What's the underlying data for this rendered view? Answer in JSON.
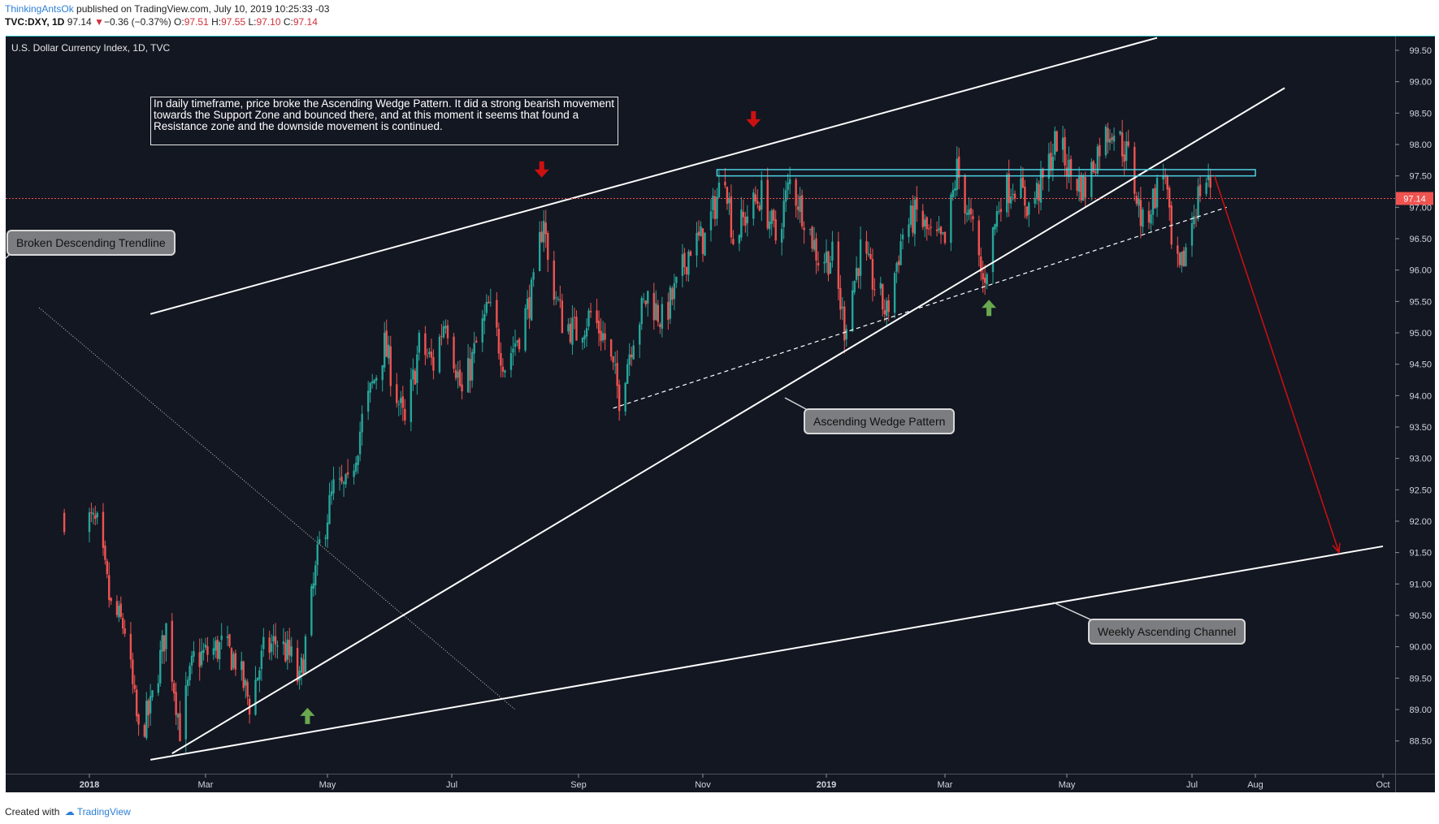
{
  "header": {
    "author": "ThinkingAntsOk",
    "published": "published on TradingView.com, July 10, 2019 10:25:33 -03",
    "symbol": "TVC:DXY, 1D",
    "last": "97.14",
    "change_arrow": "▼",
    "change": "−0.36 (−0.37%)",
    "o_label": "O:",
    "o": "97.51",
    "h_label": "H:",
    "h": "97.55",
    "l_label": "L:",
    "l": "97.10",
    "c_label": "C:",
    "c": "97.14"
  },
  "chart_title": "U.S. Dollar Currency Index, 1D, TVC",
  "note_text": "In daily timeframe, price broke the Ascending Wedge Pattern. It did a strong bearish movement towards the Support Zone and bounced there, and at this moment it seems that found a Resistance zone and the downside movement is continued.",
  "annotations": {
    "trendline": "Broken Descending Trendline",
    "wedge": "Ascending Wedge Pattern",
    "channel": "Weekly Ascending Channel"
  },
  "footer": {
    "created_with": "Created with",
    "brand": "TradingView"
  },
  "colors": {
    "background": "#131722",
    "up_candle": "#26a69a",
    "down_candle": "#ef5350",
    "price_line": "#ef5350",
    "resistance_zone": "#4dd0e1",
    "sell_arrow": "#cc1111",
    "buy_arrow": "#6aa84f",
    "projection": "#d01010"
  },
  "chart_data": {
    "type": "candlestick",
    "title": "U.S. Dollar Currency Index, 1D, TVC",
    "ylim": [
      88.2,
      99.75
    ],
    "y_ticks": [
      "99.50",
      "99.00",
      "98.50",
      "98.00",
      "97.50",
      "97.00",
      "96.50",
      "96.00",
      "95.50",
      "95.00",
      "94.50",
      "94.00",
      "93.50",
      "93.00",
      "92.50",
      "92.00",
      "91.50",
      "91.00",
      "90.50",
      "90.00",
      "89.50",
      "89.00",
      "88.50"
    ],
    "x_ticks": [
      "2018",
      "Mar",
      "May",
      "Jul",
      "Sep",
      "Nov",
      "2019",
      "Mar",
      "May",
      "Jul",
      "Aug",
      "Oct"
    ],
    "last_price": 97.14,
    "last_price_label": "97.14",
    "price_path": [
      {
        "date": "2017-12-29",
        "price": 92.1
      },
      {
        "date": "2018-01-05",
        "price": 91.9
      },
      {
        "date": "2018-01-12",
        "price": 90.6
      },
      {
        "date": "2018-01-19",
        "price": 90.3
      },
      {
        "date": "2018-01-26",
        "price": 88.6
      },
      {
        "date": "2018-02-01",
        "price": 89.0
      },
      {
        "date": "2018-02-09",
        "price": 90.3
      },
      {
        "date": "2018-02-16",
        "price": 88.7
      },
      {
        "date": "2018-02-23",
        "price": 89.8
      },
      {
        "date": "2018-03-02",
        "price": 89.9
      },
      {
        "date": "2018-03-09",
        "price": 90.0
      },
      {
        "date": "2018-03-16",
        "price": 89.8
      },
      {
        "date": "2018-03-23",
        "price": 89.1
      },
      {
        "date": "2018-03-30",
        "price": 89.9
      },
      {
        "date": "2018-04-06",
        "price": 90.1
      },
      {
        "date": "2018-04-13",
        "price": 89.8
      },
      {
        "date": "2018-04-17",
        "price": 89.4
      },
      {
        "date": "2018-04-27",
        "price": 91.6
      },
      {
        "date": "2018-05-04",
        "price": 92.5
      },
      {
        "date": "2018-05-11",
        "price": 92.5
      },
      {
        "date": "2018-05-18",
        "price": 93.6
      },
      {
        "date": "2018-05-29",
        "price": 94.8
      },
      {
        "date": "2018-06-08",
        "price": 93.5
      },
      {
        "date": "2018-06-15",
        "price": 94.8
      },
      {
        "date": "2018-06-22",
        "price": 94.5
      },
      {
        "date": "2018-06-28",
        "price": 95.3
      },
      {
        "date": "2018-07-06",
        "price": 94.0
      },
      {
        "date": "2018-07-13",
        "price": 94.8
      },
      {
        "date": "2018-07-19",
        "price": 95.4
      },
      {
        "date": "2018-07-27",
        "price": 94.5
      },
      {
        "date": "2018-08-03",
        "price": 95.0
      },
      {
        "date": "2018-08-10",
        "price": 95.7
      },
      {
        "date": "2018-08-15",
        "price": 96.9
      },
      {
        "date": "2018-08-17",
        "price": 96.1
      },
      {
        "date": "2018-08-24",
        "price": 95.2
      },
      {
        "date": "2018-08-31",
        "price": 95.0
      },
      {
        "date": "2018-09-07",
        "price": 95.3
      },
      {
        "date": "2018-09-14",
        "price": 94.9
      },
      {
        "date": "2018-09-21",
        "price": 94.0
      },
      {
        "date": "2018-09-28",
        "price": 95.0
      },
      {
        "date": "2018-10-05",
        "price": 95.6
      },
      {
        "date": "2018-10-12",
        "price": 95.2
      },
      {
        "date": "2018-10-19",
        "price": 95.7
      },
      {
        "date": "2018-10-26",
        "price": 96.4
      },
      {
        "date": "2018-11-02",
        "price": 96.5
      },
      {
        "date": "2018-11-12",
        "price": 97.6
      },
      {
        "date": "2018-11-16",
        "price": 96.5
      },
      {
        "date": "2018-11-23",
        "price": 96.9
      },
      {
        "date": "2018-11-30",
        "price": 97.2
      },
      {
        "date": "2018-12-07",
        "price": 96.5
      },
      {
        "date": "2018-12-14",
        "price": 97.4
      },
      {
        "date": "2018-12-21",
        "price": 96.9
      },
      {
        "date": "2018-12-28",
        "price": 96.2
      },
      {
        "date": "2019-01-04",
        "price": 96.2
      },
      {
        "date": "2019-01-10",
        "price": 95.1
      },
      {
        "date": "2019-01-18",
        "price": 96.3
      },
      {
        "date": "2019-01-31",
        "price": 95.3
      },
      {
        "date": "2019-02-08",
        "price": 96.6
      },
      {
        "date": "2019-02-15",
        "price": 96.9
      },
      {
        "date": "2019-02-22",
        "price": 96.5
      },
      {
        "date": "2019-03-01",
        "price": 96.4
      },
      {
        "date": "2019-03-07",
        "price": 97.6
      },
      {
        "date": "2019-03-15",
        "price": 96.6
      },
      {
        "date": "2019-03-20",
        "price": 95.8
      },
      {
        "date": "2019-03-29",
        "price": 97.2
      },
      {
        "date": "2019-04-05",
        "price": 97.4
      },
      {
        "date": "2019-04-12",
        "price": 97.0
      },
      {
        "date": "2019-04-19",
        "price": 97.4
      },
      {
        "date": "2019-04-26",
        "price": 98.1
      },
      {
        "date": "2019-05-03",
        "price": 97.5
      },
      {
        "date": "2019-05-10",
        "price": 97.3
      },
      {
        "date": "2019-05-17",
        "price": 98.0
      },
      {
        "date": "2019-05-23",
        "price": 98.3
      },
      {
        "date": "2019-05-31",
        "price": 97.8
      },
      {
        "date": "2019-06-07",
        "price": 96.7
      },
      {
        "date": "2019-06-14",
        "price": 97.3
      },
      {
        "date": "2019-06-18",
        "price": 97.6
      },
      {
        "date": "2019-06-21",
        "price": 96.3
      },
      {
        "date": "2019-06-25",
        "price": 95.9
      },
      {
        "date": "2019-07-01",
        "price": 96.8
      },
      {
        "date": "2019-07-05",
        "price": 97.3
      },
      {
        "date": "2019-07-09",
        "price": 97.5
      },
      {
        "date": "2019-07-10",
        "price": 97.14
      }
    ],
    "drawings": {
      "weekly_channel_upper": [
        {
          "date": "2018-02-01",
          "price": 95.3
        },
        {
          "date": "2019-06-14",
          "price": 99.7
        }
      ],
      "weekly_channel_lower": [
        {
          "date": "2018-02-01",
          "price": 88.2
        },
        {
          "date": "2019-10-01",
          "price": 91.6
        }
      ],
      "wedge_lower_line": [
        {
          "date": "2018-02-12",
          "price": 88.3
        },
        {
          "date": "2019-08-15",
          "price": 98.9
        }
      ],
      "wedge_dashed_support": [
        {
          "date": "2018-09-18",
          "price": 93.8
        },
        {
          "date": "2019-07-18",
          "price": 97.0
        }
      ],
      "broken_descending_trendline": [
        {
          "date": "2017-12-26",
          "price": 95.4
        },
        {
          "date": "2018-08-01",
          "price": 89.0
        }
      ],
      "resistance_zone": {
        "from": "2018-11-08",
        "to": "2019-08-01",
        "low": 97.5,
        "high": 97.6
      },
      "projection_arrow": [
        {
          "date": "2019-07-12",
          "price": 97.5
        },
        {
          "date": "2019-09-10",
          "price": 91.5
        }
      ]
    }
  }
}
